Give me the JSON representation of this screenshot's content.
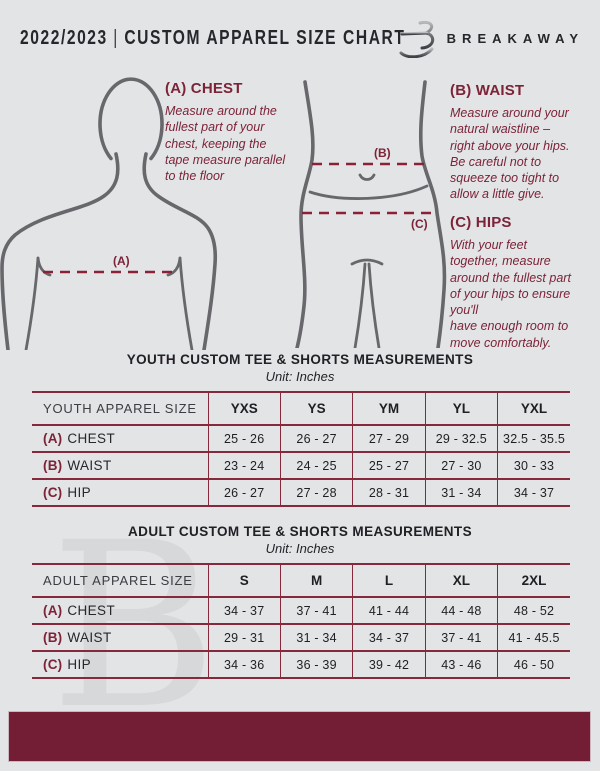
{
  "page": {
    "title_year": "2022/2023",
    "title_sep": "|",
    "title_main": "CUSTOM APPAREL SIZE CHART",
    "brand": "BREAKAWAY",
    "watermark_letter": "B"
  },
  "guide": {
    "chest": {
      "heading": "(A) CHEST",
      "marker": "(A)",
      "body": "Measure around the\nfullest part of your\nchest, keeping the\ntape measure parallel\nto the floor"
    },
    "waist": {
      "heading": "(B) WAIST",
      "marker": "(B)",
      "body": "Measure around your\nnatural waistline –\nright above your hips.\nBe careful not to\nsqueeze too tight to\nallow a little give."
    },
    "hips": {
      "heading": "(C) HIPS",
      "marker": "(C)",
      "body": "With your feet\ntogether, measure\naround the fullest part\nof your hips to ensure\nyou'll\nhave enough room to\nmove comfortably."
    }
  },
  "youth_table": {
    "title": "YOUTH CUSTOM TEE & SHORTS MEASUREMENTS",
    "unit": "Unit: Inches",
    "header": [
      "YOUTH APPAREL SIZE",
      "YXS",
      "YS",
      "YM",
      "YL",
      "YXL"
    ],
    "rows": [
      {
        "key": "(A)",
        "label": "CHEST",
        "values": [
          "25 - 26",
          "26 - 27",
          "27 - 29",
          "29 - 32.5",
          "32.5 - 35.5"
        ]
      },
      {
        "key": "(B)",
        "label": "WAIST",
        "values": [
          "23 - 24",
          "24 - 25",
          "25 - 27",
          "27 - 30",
          "30 - 33"
        ]
      },
      {
        "key": "(C)",
        "label": "HIP",
        "values": [
          "26 - 27",
          "27 - 28",
          "28 - 31",
          "31 - 34",
          "34 - 37"
        ]
      }
    ]
  },
  "adult_table": {
    "title": "ADULT CUSTOM TEE & SHORTS MEASUREMENTS",
    "unit": "Unit: Inches",
    "header": [
      "ADULT APPAREL SIZE",
      "S",
      "M",
      "L",
      "XL",
      "2XL"
    ],
    "rows": [
      {
        "key": "(A)",
        "label": "CHEST",
        "values": [
          "34 - 37",
          "37 - 41",
          "41 - 44",
          "44 - 48",
          "48 - 52"
        ]
      },
      {
        "key": "(B)",
        "label": "WAIST",
        "values": [
          "29 - 31",
          "31 - 34",
          "34 - 37",
          "37 - 41",
          "41 - 45.5"
        ]
      },
      {
        "key": "(C)",
        "label": "HIP",
        "values": [
          "34 - 36",
          "36 - 39",
          "39 - 42",
          "43 - 46",
          "46 - 50"
        ]
      }
    ]
  },
  "colors": {
    "bg": "#e3e4e6",
    "maroon": "#7c2338",
    "line": "#86293c",
    "dash": "#8b2136",
    "bar": "#731e34",
    "dark": "#26262b",
    "figure": "#68686c",
    "watermark": "#d7d8da"
  }
}
